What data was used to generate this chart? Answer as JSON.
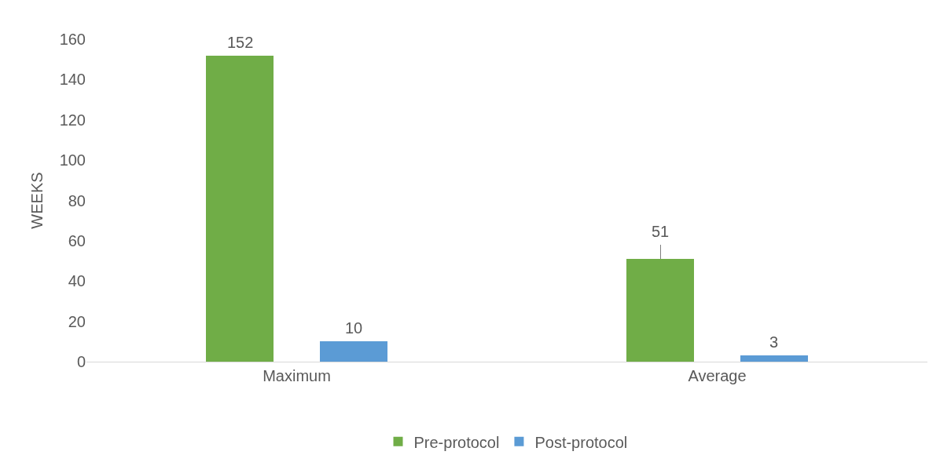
{
  "chart_data": {
    "type": "bar",
    "ylabel": "WEEKS",
    "categories": [
      "Maximum",
      "Average"
    ],
    "series": [
      {
        "name": "Pre-protocol",
        "color": "#70ad47",
        "values": [
          152,
          51
        ],
        "errors": [
          null,
          [
            51,
            58
          ]
        ]
      },
      {
        "name": "Post-protocol",
        "color": "#5b9bd5",
        "values": [
          10,
          3
        ]
      }
    ],
    "ylim": [
      0,
      160
    ],
    "yticks": [
      0,
      20,
      40,
      60,
      80,
      100,
      120,
      140,
      160
    ],
    "legend": "bottom",
    "data_labels": true
  }
}
